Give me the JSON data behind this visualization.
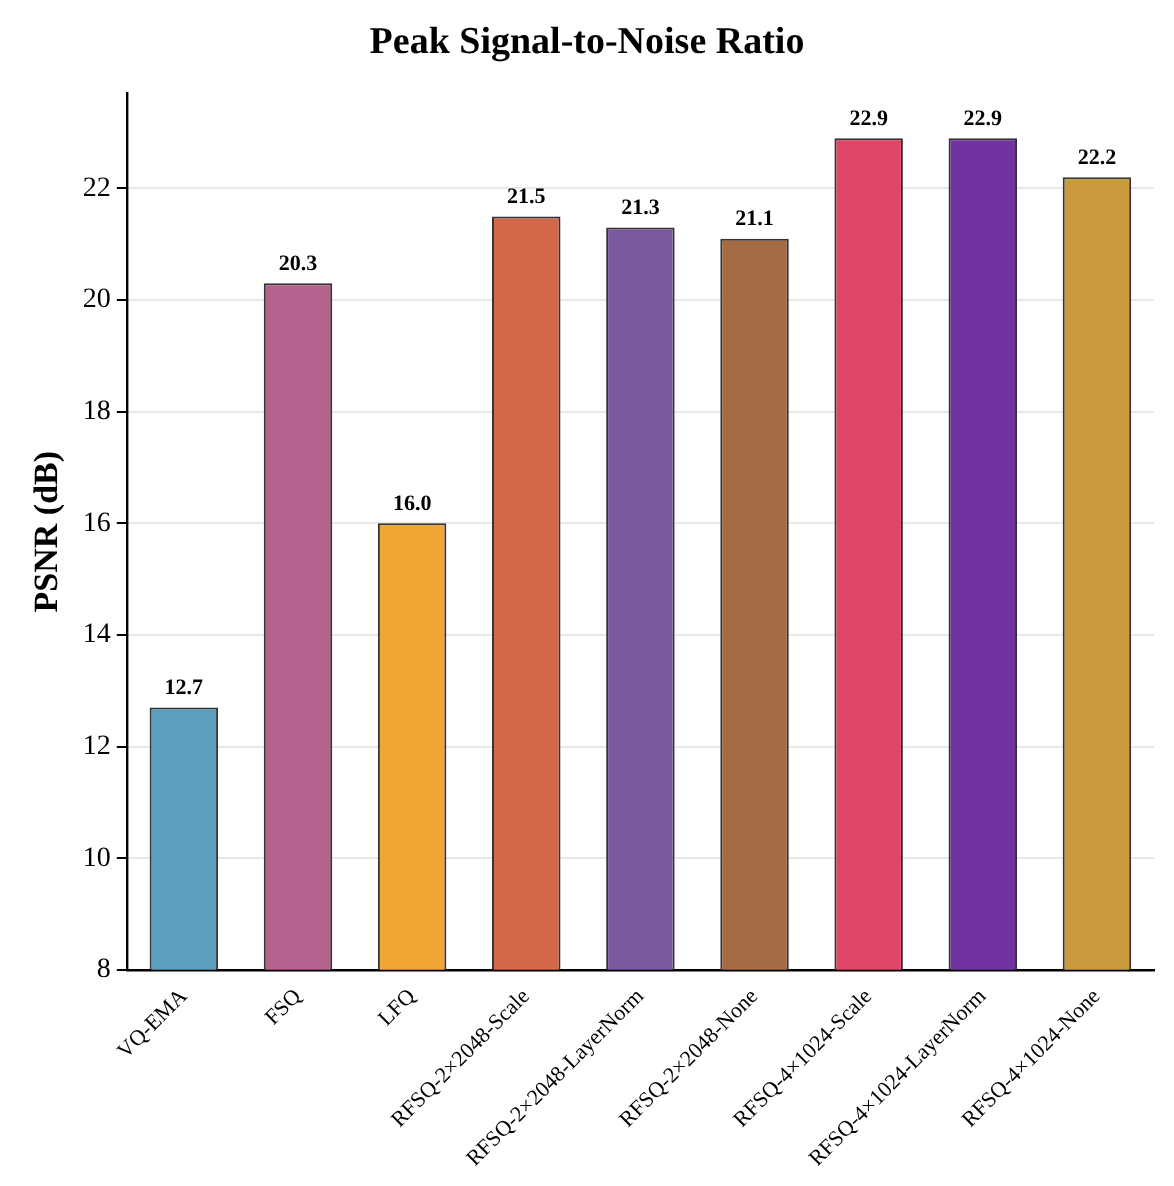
{
  "chart_data": {
    "type": "bar",
    "title": "Peak Signal-to-Noise Ratio",
    "ylabel": "PSNR (dB)",
    "categories": [
      "VQ-EMA",
      "FSQ",
      "LFQ",
      "RFSQ-2×2048-Scale",
      "RFSQ-2×2048-LayerNorm",
      "RFSQ-2×2048-None",
      "RFSQ-4×1024-Scale",
      "RFSQ-4×1024-LayerNorm",
      "RFSQ-4×1024-None"
    ],
    "values": [
      12.7,
      20.3,
      16.0,
      21.5,
      21.3,
      21.1,
      22.9,
      22.9,
      22.2
    ],
    "value_labels": [
      "12.7",
      "20.3",
      "16.0",
      "21.5",
      "21.3",
      "21.1",
      "22.9",
      "22.9",
      "22.2"
    ],
    "colors": [
      "#5a9fbf",
      "#b5628f",
      "#f0a535",
      "#d4674a",
      "#7b57a0",
      "#a56b45",
      "#e04466",
      "#7033a0",
      "#c99b3c"
    ],
    "ylim": [
      8,
      23.7
    ],
    "yticks": [
      8,
      10,
      12,
      14,
      16,
      18,
      20,
      22
    ],
    "grid": "y"
  }
}
